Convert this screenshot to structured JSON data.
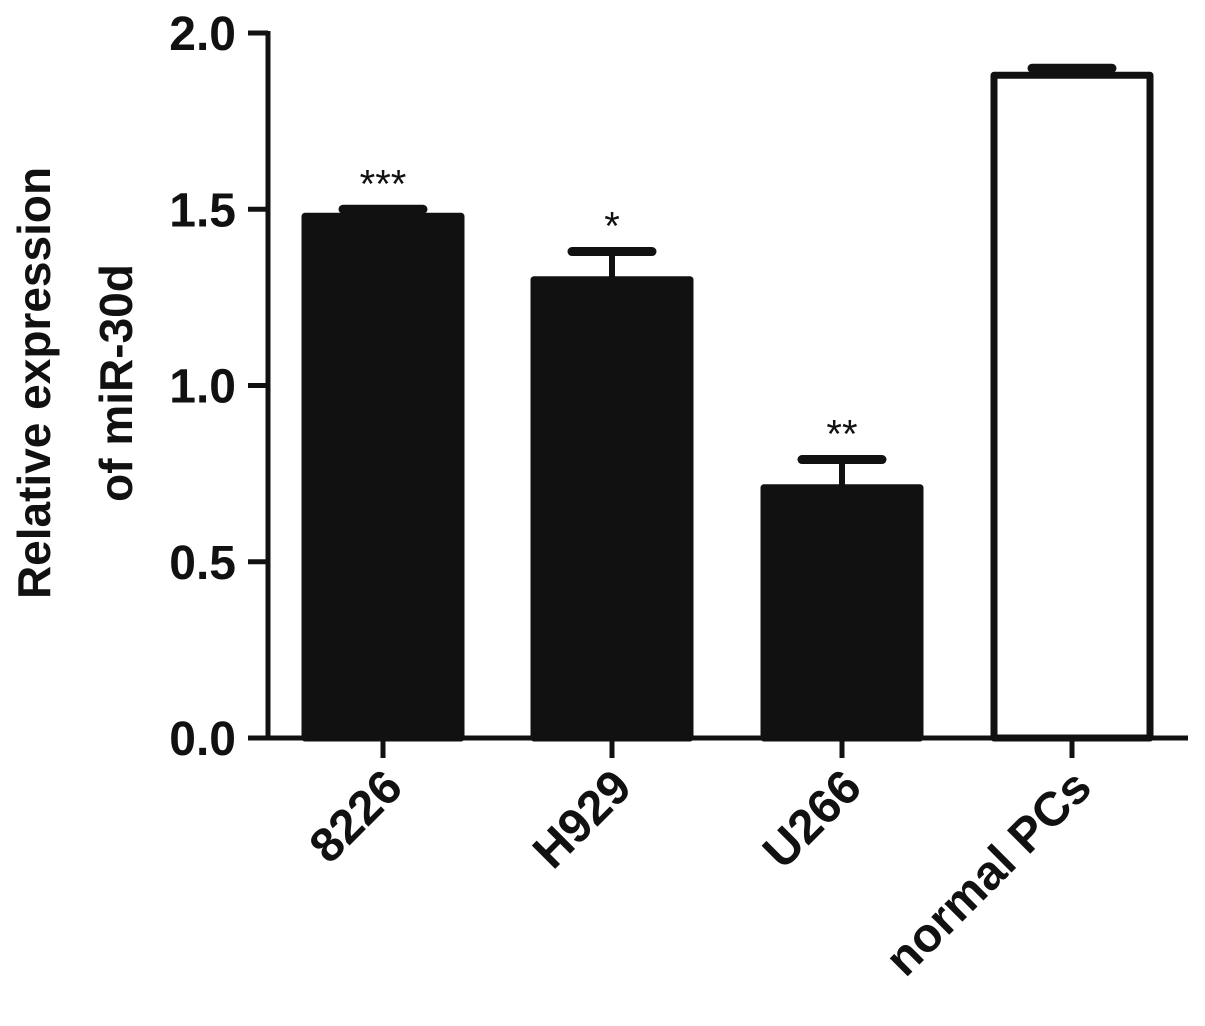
{
  "chart_data": {
    "type": "bar",
    "categories": [
      "8226",
      "H929",
      "U266",
      "normal PCs"
    ],
    "values": [
      1.48,
      1.3,
      0.71,
      1.88
    ],
    "errors": [
      0.02,
      0.08,
      0.08,
      0.02
    ],
    "significance": [
      "***",
      "*",
      "**",
      ""
    ],
    "bar_fill": [
      "#111111",
      "#111111",
      "#111111",
      "#ffffff"
    ],
    "ylabel_line1": "Relative expression",
    "ylabel_line2": "of miR-30d",
    "xlabel": "",
    "title": "",
    "ylim": [
      0,
      2.0
    ],
    "yticks": [
      "0.0",
      "0.5",
      "1.0",
      "1.5",
      "2.0"
    ],
    "ytick_values": [
      0,
      0.5,
      1.0,
      1.5,
      2.0
    ],
    "grid": false,
    "legend": "none"
  }
}
